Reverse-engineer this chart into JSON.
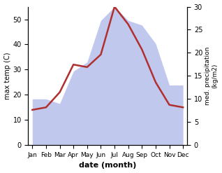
{
  "months": [
    "Jan",
    "Feb",
    "Mar",
    "Apr",
    "May",
    "Jun",
    "Jul",
    "Aug",
    "Sep",
    "Oct",
    "Nov",
    "Dec"
  ],
  "temperature": [
    14,
    15,
    21,
    32,
    31,
    36,
    55,
    48,
    38,
    25,
    16,
    15
  ],
  "precipitation": [
    10,
    10,
    9,
    16,
    18,
    27,
    30,
    27,
    26,
    22,
    13,
    13
  ],
  "temp_color": "#b03030",
  "precip_color_fill": "#c0c8ee",
  "xlabel": "date (month)",
  "ylabel_left": "max temp (C)",
  "ylabel_right": "med. precipitation\n(kg/m2)",
  "ylim_left": [
    0,
    55
  ],
  "ylim_right": [
    0,
    30
  ],
  "yticks_left": [
    0,
    10,
    20,
    30,
    40,
    50
  ],
  "yticks_right": [
    0,
    5,
    10,
    15,
    20,
    25,
    30
  ],
  "background_color": "#ffffff"
}
